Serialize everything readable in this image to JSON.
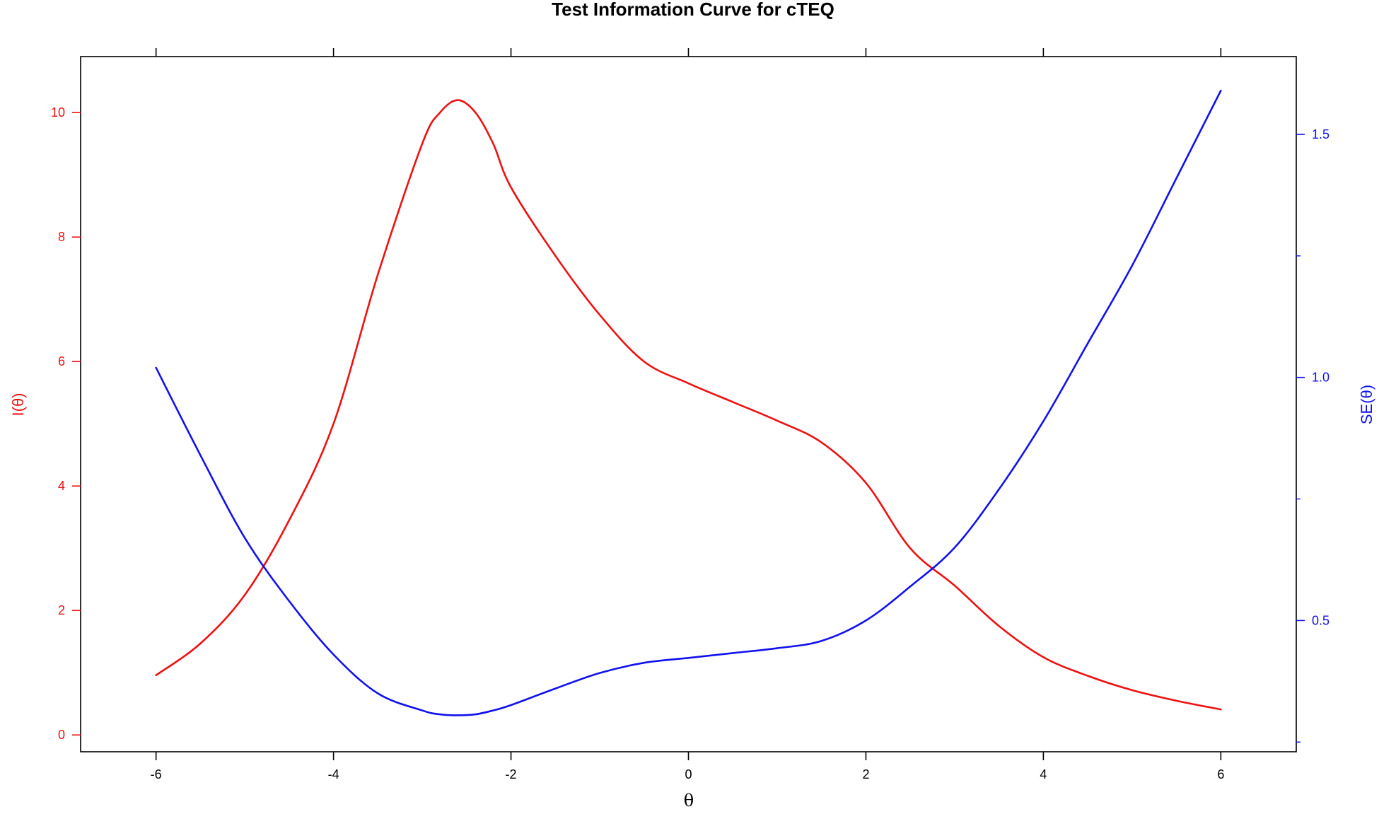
{
  "chart_data": {
    "type": "line",
    "title": "Test Information Curve for cTEQ",
    "xlabel": "θ",
    "ylabel_left": "I(θ)",
    "ylabel_right": "SE(θ)",
    "xlim": [
      -6.85,
      6.85
    ],
    "ylim_left": [
      -0.27,
      10.9
    ],
    "ylim_right": [
      0.23,
      1.66
    ],
    "x_ticks": [
      -6,
      -4,
      -2,
      0,
      2,
      4,
      6
    ],
    "y_left_ticks": [
      0,
      2,
      4,
      6,
      8,
      10
    ],
    "y_right_ticks": [
      0.5,
      1.0,
      1.5
    ],
    "y_right_tick_labels": [
      "0.5",
      "1.0",
      "1.5"
    ],
    "grid": false,
    "legend": "none",
    "colors": {
      "information": "#ee1111",
      "se": "#1111ee",
      "frame": "#000000"
    },
    "series": [
      {
        "key": "information",
        "axis": "left",
        "x": [
          -6,
          -5.5,
          -5,
          -4.5,
          -4,
          -3.5,
          -3,
          -2.8,
          -2.6,
          -2.4,
          -2.2,
          -2,
          -1.5,
          -1,
          -0.5,
          0,
          0.5,
          1,
          1.5,
          2,
          2.5,
          3,
          3.5,
          4,
          4.5,
          5,
          5.5,
          6
        ],
        "values": [
          0.96,
          1.47,
          2.25,
          3.45,
          5.0,
          7.4,
          9.5,
          10.0,
          10.2,
          10.0,
          9.5,
          8.8,
          7.7,
          6.75,
          6.0,
          5.65,
          5.35,
          5.05,
          4.7,
          4.05,
          3.0,
          2.4,
          1.75,
          1.25,
          0.95,
          0.72,
          0.55,
          0.41
        ]
      },
      {
        "key": "se",
        "axis": "right",
        "x": [
          -6,
          -5.5,
          -5,
          -4.5,
          -4,
          -3.5,
          -3,
          -2.8,
          -2.6,
          -2.4,
          -2.2,
          -2,
          -1.5,
          -1,
          -0.5,
          0,
          0.5,
          1,
          1.5,
          2,
          2.5,
          3,
          3.5,
          4,
          4.5,
          5,
          5.5,
          6
        ],
        "values": [
          1.02,
          0.84,
          0.67,
          0.54,
          0.43,
          0.35,
          0.315,
          0.307,
          0.305,
          0.307,
          0.315,
          0.326,
          0.36,
          0.392,
          0.413,
          0.423,
          0.433,
          0.443,
          0.458,
          0.5,
          0.57,
          0.65,
          0.77,
          0.91,
          1.07,
          1.23,
          1.41,
          1.59
        ]
      }
    ]
  }
}
